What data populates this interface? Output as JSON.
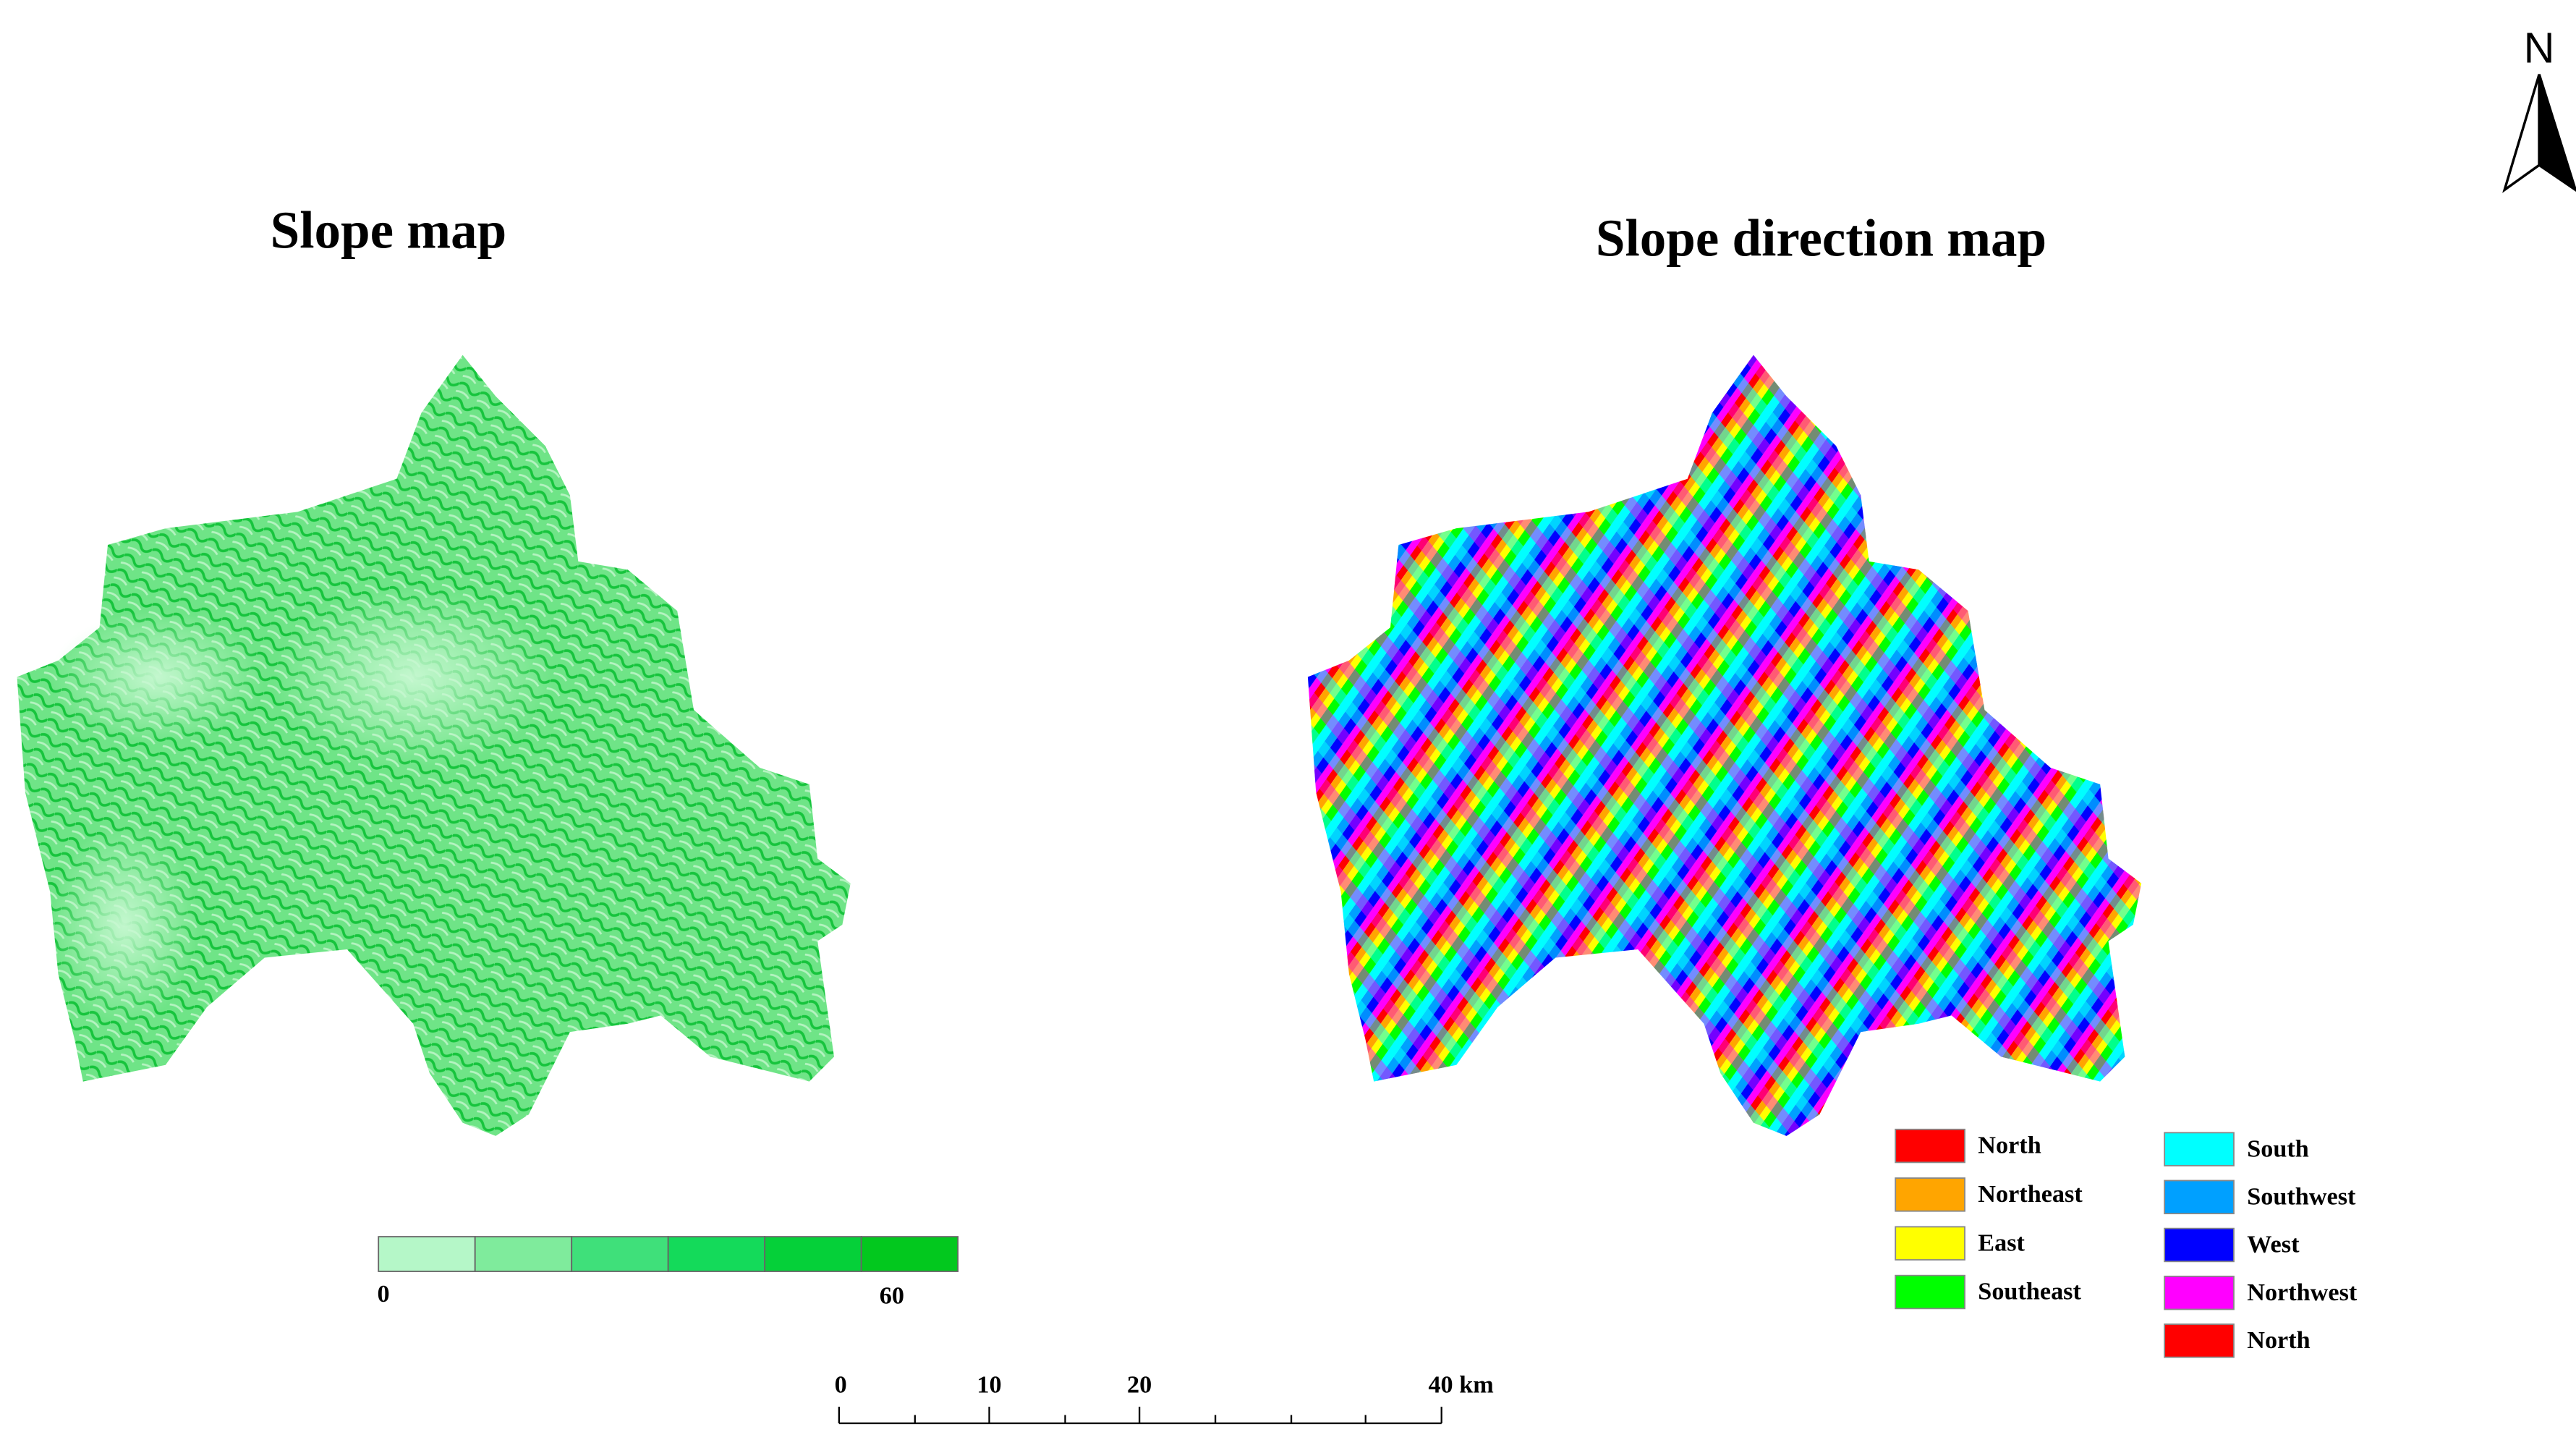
{
  "north_arrow": {
    "label": "N"
  },
  "slope_map": {
    "title": "Slope map",
    "legend": {
      "colors": [
        "#b5f7c8",
        "#7feb9c",
        "#3fe07a",
        "#14da5a",
        "#05d039",
        "#02c81e"
      ],
      "min_label": "0",
      "max_label": "60"
    }
  },
  "aspect_map": {
    "title": "Slope direction map",
    "legend": [
      {
        "label": "North",
        "color": "#ff0000"
      },
      {
        "label": "Northeast",
        "color": "#ffa500"
      },
      {
        "label": "East",
        "color": "#ffff00"
      },
      {
        "label": "Southeast",
        "color": "#00ff00"
      },
      {
        "label": "South",
        "color": "#00ffff"
      },
      {
        "label": "Southwest",
        "color": "#00a0ff"
      },
      {
        "label": "West",
        "color": "#0000ff"
      },
      {
        "label": "Northwest",
        "color": "#ff00ff"
      },
      {
        "label": "North",
        "color": "#ff0000"
      }
    ]
  },
  "scale_bar": {
    "labels": [
      "0",
      "10",
      "20",
      "40 km"
    ]
  }
}
